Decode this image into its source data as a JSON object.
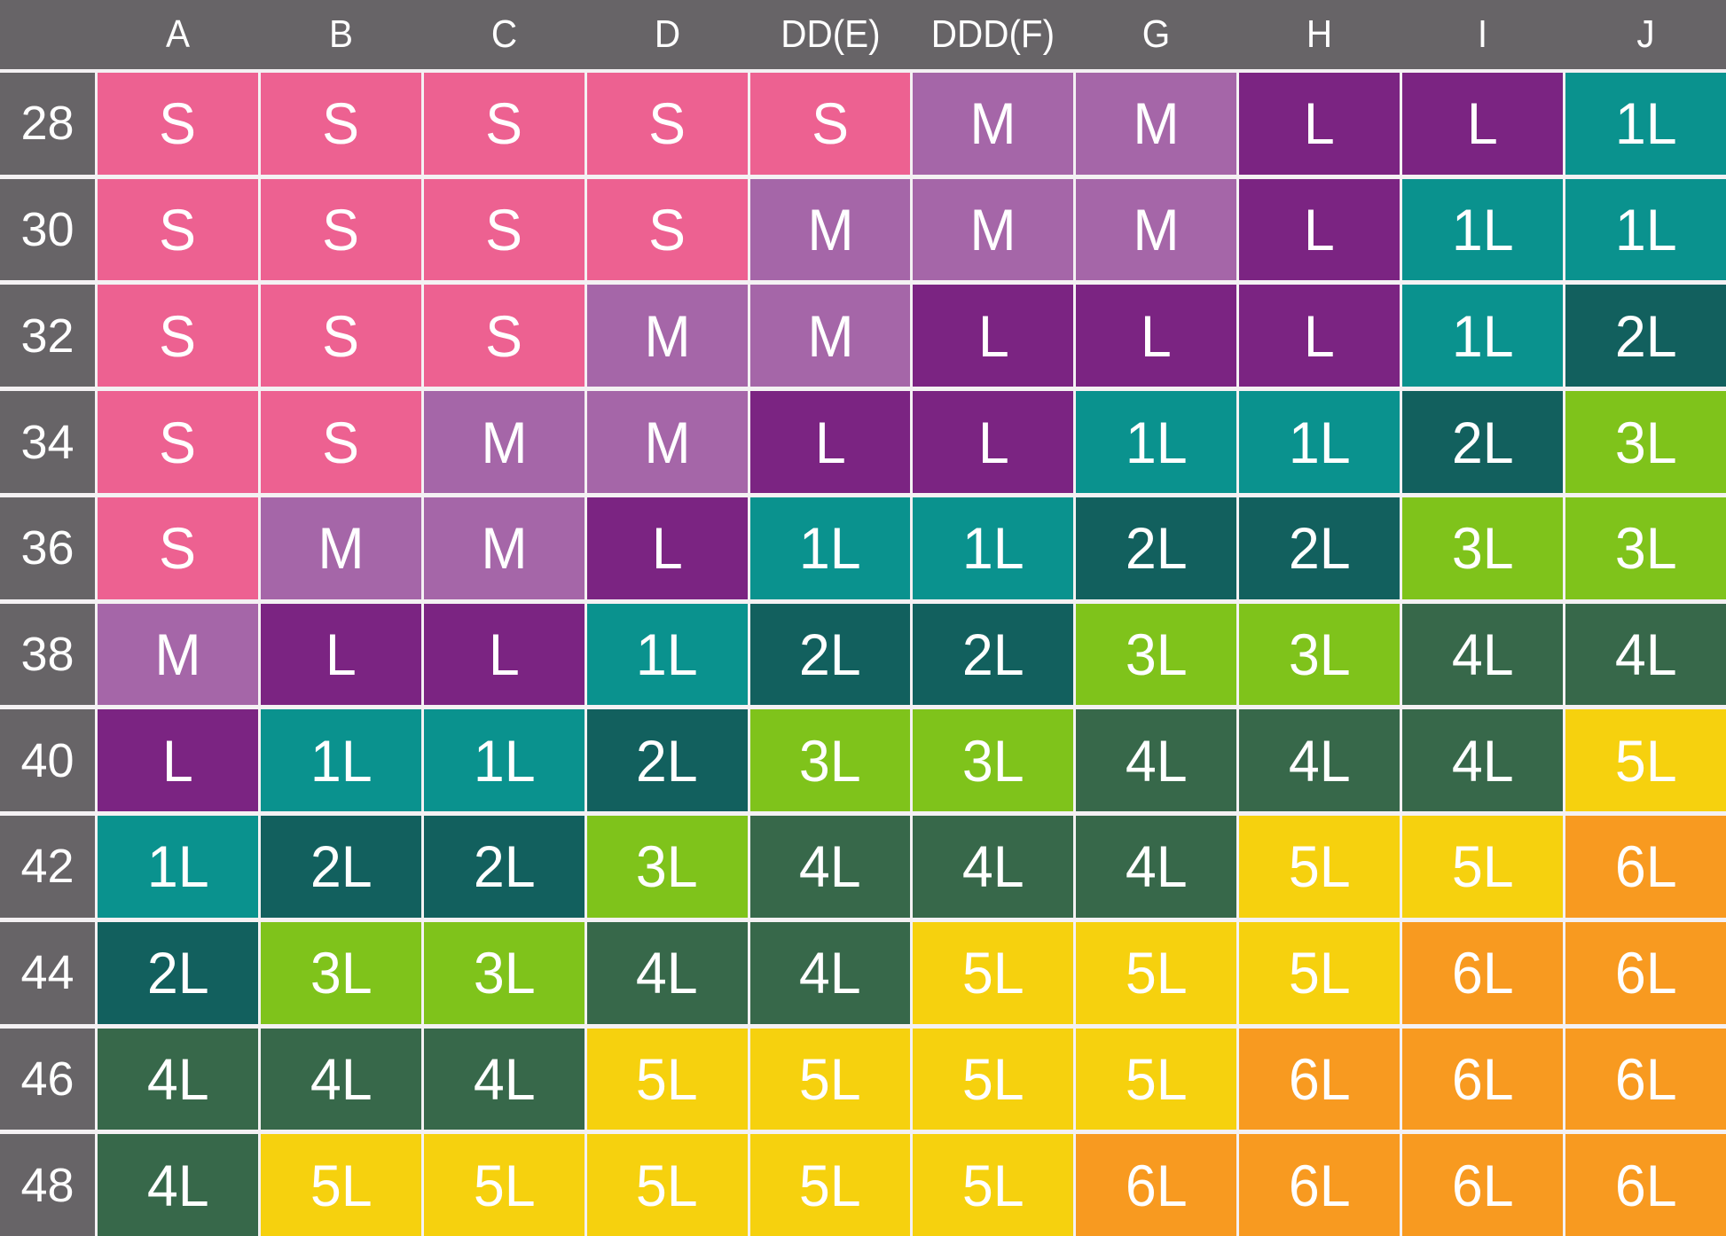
{
  "chart_data": {
    "type": "table",
    "title": "",
    "columns": [
      "A",
      "B",
      "C",
      "D",
      "DD(E)",
      "DDD(F)",
      "G",
      "H",
      "I",
      "J"
    ],
    "rows": [
      {
        "band": "28",
        "cells": [
          "S",
          "S",
          "S",
          "S",
          "S",
          "M",
          "M",
          "L",
          "L",
          "1L"
        ]
      },
      {
        "band": "30",
        "cells": [
          "S",
          "S",
          "S",
          "S",
          "M",
          "M",
          "M",
          "L",
          "1L",
          "1L"
        ]
      },
      {
        "band": "32",
        "cells": [
          "S",
          "S",
          "S",
          "M",
          "M",
          "L",
          "L",
          "L",
          "1L",
          "2L"
        ]
      },
      {
        "band": "34",
        "cells": [
          "S",
          "S",
          "M",
          "M",
          "L",
          "L",
          "1L",
          "1L",
          "2L",
          "3L"
        ]
      },
      {
        "band": "36",
        "cells": [
          "S",
          "M",
          "M",
          "L",
          "1L",
          "1L",
          "2L",
          "2L",
          "3L",
          "3L"
        ]
      },
      {
        "band": "38",
        "cells": [
          "M",
          "L",
          "L",
          "1L",
          "2L",
          "2L",
          "3L",
          "3L",
          "4L",
          "4L"
        ]
      },
      {
        "band": "40",
        "cells": [
          "L",
          "1L",
          "1L",
          "2L",
          "3L",
          "3L",
          "4L",
          "4L",
          "4L",
          "5L"
        ]
      },
      {
        "band": "42",
        "cells": [
          "1L",
          "2L",
          "2L",
          "3L",
          "4L",
          "4L",
          "4L",
          "5L",
          "5L",
          "6L"
        ]
      },
      {
        "band": "44",
        "cells": [
          "2L",
          "3L",
          "3L",
          "4L",
          "4L",
          "5L",
          "5L",
          "5L",
          "6L",
          "6L"
        ]
      },
      {
        "band": "46",
        "cells": [
          "4L",
          "4L",
          "4L",
          "5L",
          "5L",
          "5L",
          "5L",
          "6L",
          "6L",
          "6L"
        ]
      },
      {
        "band": "48",
        "cells": [
          "4L",
          "5L",
          "5L",
          "5L",
          "5L",
          "5L",
          "6L",
          "6L",
          "6L",
          "6L"
        ]
      }
    ],
    "size_colors": {
      "S": "#ed6191",
      "M": "#a566a8",
      "L": "#7b2482",
      "1L": "#0a928e",
      "2L": "#12605e",
      "3L": "#7fc31b",
      "4L": "#37684a",
      "5L": "#f6d10e",
      "6L": "#f89a20"
    },
    "header_bg": "#676467",
    "grid_line_color": "#f4f1f3",
    "text_color": "#ffffff"
  }
}
